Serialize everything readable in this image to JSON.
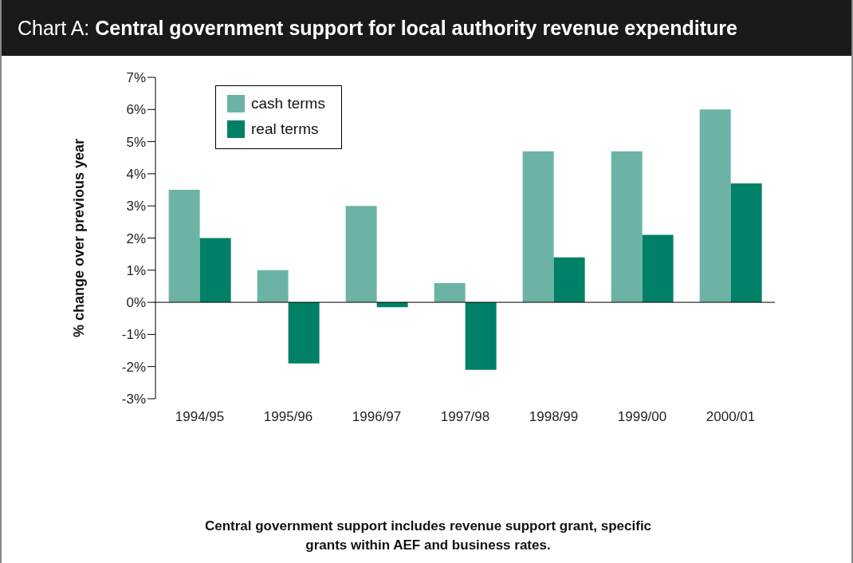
{
  "chart_data": {
    "type": "bar",
    "title": "Chart A:  Central government support for local authority revenue expenditure",
    "categories": [
      "1994/95",
      "1995/96",
      "1996/97",
      "1997/98",
      "1998/99",
      "1999/00",
      "2000/01"
    ],
    "series": [
      {
        "name": "cash terms",
        "color": "#6db3a5",
        "values": [
          3.5,
          1.0,
          3.0,
          0.6,
          4.7,
          4.7,
          6.0
        ]
      },
      {
        "name": "real terms",
        "color": "#008066",
        "values": [
          2.0,
          -1.9,
          -0.15,
          -2.1,
          1.4,
          2.1,
          3.7
        ]
      }
    ],
    "ylabel": "% change over previous year",
    "ylim": [
      -3,
      7
    ],
    "yticks": [
      {
        "value": -3,
        "label": "-3%"
      },
      {
        "value": -2,
        "label": "-2%"
      },
      {
        "value": -1,
        "label": "-1%"
      },
      {
        "value": 0,
        "label": "0%"
      },
      {
        "value": 1,
        "label": "1%"
      },
      {
        "value": 2,
        "label": "2%"
      },
      {
        "value": 3,
        "label": "3%"
      },
      {
        "value": 4,
        "label": "4%"
      },
      {
        "value": 5,
        "label": "5%"
      },
      {
        "value": 6,
        "label": "6%"
      },
      {
        "value": 7,
        "label": "7%"
      }
    ],
    "legend": "top left",
    "annotations": [
      "Central government support includes revenue support grant, specific grants within AEF and business rates."
    ]
  }
}
